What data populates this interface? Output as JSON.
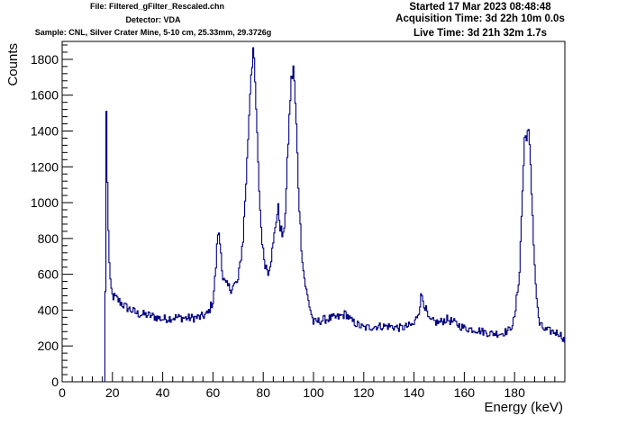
{
  "header": {
    "file": "File: Filtered_gFilter_Rescaled.chn",
    "detector": "Detector: VDA",
    "sample": "Sample: CNL, Silver Crater Mine, 5-10 cm, 25.33mm, 29.3726g",
    "started": "Started 17 Mar 2023 08:48:48",
    "acquisition_time": "Acquisition Time: 3d 22h 10m 0.0s",
    "live_time": "Live Time: 3d 21h 32m 1.7s"
  },
  "chart_data": {
    "type": "line",
    "style": "histogram-step",
    "title": "",
    "xlabel": "Energy (keV)",
    "ylabel": "Counts",
    "xlim": [
      0,
      200
    ],
    "ylim": [
      0,
      1900
    ],
    "x_ticks": [
      0,
      20,
      40,
      60,
      80,
      100,
      120,
      140,
      160,
      180
    ],
    "y_ticks": [
      0,
      200,
      400,
      600,
      800,
      1000,
      1200,
      1400,
      1600,
      1800
    ],
    "grid": false,
    "legend": "none",
    "series_color": "#000080",
    "series": [
      {
        "x": [
          17.0,
          17.6,
          18.0,
          18.5,
          19.0,
          20.0,
          22.0,
          25.0,
          30.0,
          35.0,
          40.0,
          45.0,
          50.0,
          55.0,
          58.0,
          60.0,
          61.0,
          62.0,
          63.0,
          64.0,
          65.0,
          67.0,
          70.0,
          72.0,
          73.5,
          75.0,
          76.0,
          77.0,
          78.0,
          79.0,
          80.0,
          81.0,
          82.0,
          83.0,
          84.0,
          85.0,
          86.0,
          87.0,
          88.0,
          89.0,
          90.0,
          91.0,
          92.0,
          93.0,
          94.0,
          95.0,
          96.0,
          97.0,
          98.0,
          100.0,
          105.0,
          110.0,
          113.0,
          115.0,
          120.0,
          125.0,
          130.0,
          135.0,
          140.0,
          142.0,
          143.0,
          144.0,
          146.0,
          150.0,
          153.0,
          156.0,
          160.0,
          165.0,
          170.0,
          175.0,
          178.0,
          180.0,
          182.0,
          183.0,
          184.0,
          185.0,
          185.5,
          186.0,
          187.0,
          188.0,
          189.0,
          190.0,
          192.0,
          195.0,
          198.0,
          200.0
        ],
        "y": [
          0,
          1510,
          1100,
          800,
          560,
          480,
          460,
          420,
          380,
          370,
          350,
          360,
          355,
          360,
          380,
          450,
          600,
          840,
          760,
          580,
          540,
          520,
          560,
          800,
          1200,
          1700,
          1860,
          1600,
          1200,
          900,
          720,
          650,
          620,
          680,
          760,
          900,
          960,
          850,
          800,
          1000,
          1350,
          1650,
          1760,
          1500,
          1100,
          800,
          620,
          520,
          450,
          330,
          350,
          360,
          380,
          340,
          300,
          310,
          310,
          300,
          320,
          400,
          490,
          440,
          340,
          330,
          350,
          330,
          300,
          290,
          270,
          270,
          290,
          350,
          620,
          1000,
          1350,
          1400,
          1390,
          1300,
          1000,
          650,
          420,
          320,
          290,
          280,
          270,
          230
        ]
      }
    ]
  }
}
